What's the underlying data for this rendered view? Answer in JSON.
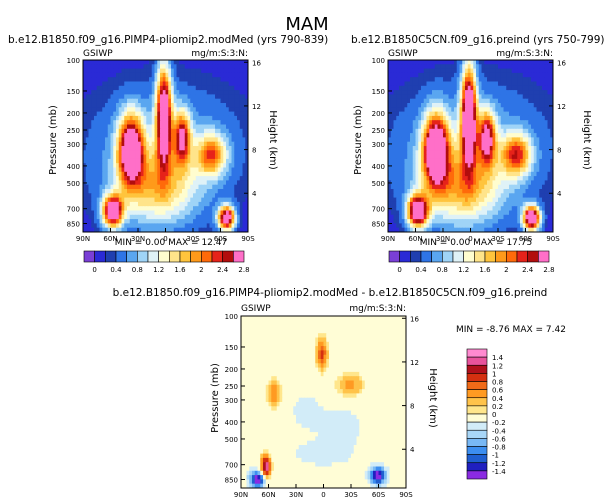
{
  "title": "MAM",
  "colors": {
    "abs_scale": [
      "#7a3fd6",
      "#2a2ad6",
      "#1f3fb0",
      "#2e74e6",
      "#5aa6f0",
      "#9fd4f7",
      "#dff2f7",
      "#fffdcf",
      "#ffe48a",
      "#ffc43d",
      "#ff9a1a",
      "#ff6a0a",
      "#e6231a",
      "#b20d0d",
      "#ff6fc8"
    ],
    "diff_scale": [
      "#8a2be2",
      "#2020c0",
      "#1f5fd0",
      "#3c8ef0",
      "#78b8f5",
      "#a8d6f7",
      "#d2ecf8",
      "#fffdd6",
      "#ffe68c",
      "#ffc34a",
      "#ff9a22",
      "#f06a18",
      "#d43010",
      "#b0101c",
      "#e8539c",
      "#ff8ad0"
    ]
  },
  "chart_data": [
    {
      "type": "heatmap",
      "title": "b.e12.B1850.f09_g16.PlMP4-pliomip2.modMed (yrs 790-839)",
      "left_label": "GSIWP",
      "right_label": "mg/m:S:3:N:",
      "xlabel": "",
      "ylabel": "Pressure (mb)",
      "y2label": "Height (km)",
      "x_ticks": [
        "90N",
        "60N",
        "30N",
        "0",
        "30S",
        "60S",
        "90S"
      ],
      "y_ticks": [
        100,
        150,
        200,
        250,
        300,
        400,
        500,
        700,
        850
      ],
      "y2_ticks": [
        16,
        12,
        8,
        4
      ],
      "min_text": "MIN =    0.00  MAX =   12.47",
      "min": 0.0,
      "max": 12.47
    },
    {
      "type": "heatmap",
      "title": "b.e12.B1850C5CN.f09_g16.preind (yrs 750-799)",
      "left_label": "GSIWP",
      "right_label": "mg/m:S:3:N:",
      "xlabel": "",
      "ylabel": "Pressure (mb)",
      "y2label": "Height (km)",
      "x_ticks": [
        "90N",
        "60N",
        "30N",
        "0",
        "30S",
        "60S",
        "90S"
      ],
      "y_ticks": [
        100,
        150,
        200,
        250,
        300,
        400,
        500,
        700,
        850
      ],
      "y2_ticks": [
        16,
        12,
        8,
        4
      ],
      "min_text": "MIN =    0.00  MAX =   17.75",
      "min": 0.0,
      "max": 17.75
    },
    {
      "type": "heatmap",
      "title": "b.e12.B1850.f09_g16.PlMP4-pliomip2.modMed - b.e12.B1850C5CN.f09_g16.preind",
      "left_label": "GSIWP",
      "right_label": "mg/m:S:3:N:",
      "xlabel": "",
      "ylabel": "Pressure (mb)",
      "y2label": "Height (km)",
      "x_ticks": [
        "90N",
        "60N",
        "30N",
        "0",
        "30S",
        "60S",
        "90S"
      ],
      "y_ticks": [
        100,
        150,
        200,
        250,
        300,
        400,
        500,
        700,
        850
      ],
      "y2_ticks": [
        16,
        12,
        8,
        4
      ],
      "min_text": "MIN =   -8.76  MAX =    7.42",
      "min": -8.76,
      "max": 7.42
    }
  ],
  "abs_colorbar_labels": [
    "0",
    "0.4",
    "0.8",
    "1.2",
    "1.6",
    "2",
    "2.4",
    "2.8"
  ],
  "diff_colorbar_labels": [
    "1.4",
    "1.2",
    "1",
    "0.8",
    "0.6",
    "0.4",
    "0.2",
    "0",
    "-0.2",
    "-0.4",
    "-0.6",
    "-0.8",
    "-1",
    "-1.2",
    "-1.4"
  ]
}
